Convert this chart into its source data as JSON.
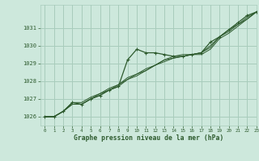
{
  "background_color": "#cde8dc",
  "grid_color": "#a8ccbc",
  "line_color": "#2d5a2d",
  "title": "Graphe pression niveau de la mer (hPa)",
  "xlim": [
    -0.5,
    23
  ],
  "ylim": [
    1025.5,
    1032.3
  ],
  "yticks": [
    1026,
    1027,
    1028,
    1029,
    1030,
    1031
  ],
  "xticks": [
    0,
    1,
    2,
    3,
    4,
    5,
    6,
    7,
    8,
    9,
    10,
    11,
    12,
    13,
    14,
    15,
    16,
    17,
    18,
    19,
    20,
    21,
    22,
    23
  ],
  "series": [
    [
      1026.0,
      1026.0,
      1026.3,
      1026.8,
      1026.7,
      1027.0,
      1027.2,
      1027.5,
      1027.7,
      1029.2,
      1029.8,
      1029.6,
      1029.6,
      1029.5,
      1029.4,
      1029.4,
      1029.5,
      1029.6,
      1030.2,
      1030.5,
      1030.9,
      1031.3,
      1031.7,
      1031.9
    ],
    [
      1026.0,
      1026.0,
      1026.3,
      1026.8,
      1026.8,
      1027.1,
      1027.3,
      1027.6,
      1027.8,
      1028.1,
      1028.3,
      1028.6,
      1028.9,
      1029.2,
      1029.4,
      1029.5,
      1029.5,
      1029.6,
      1030.0,
      1030.5,
      1030.9,
      1031.2,
      1031.6,
      1031.9
    ],
    [
      1026.0,
      1026.0,
      1026.3,
      1026.7,
      1026.7,
      1027.0,
      1027.3,
      1027.5,
      1027.8,
      1028.2,
      1028.4,
      1028.7,
      1028.9,
      1029.2,
      1029.3,
      1029.4,
      1029.5,
      1029.6,
      1029.9,
      1030.5,
      1030.8,
      1031.2,
      1031.5,
      1031.9
    ],
    [
      1026.0,
      1026.0,
      1026.3,
      1026.7,
      1026.7,
      1027.0,
      1027.2,
      1027.5,
      1027.7,
      1028.1,
      1028.4,
      1028.6,
      1028.9,
      1029.1,
      1029.3,
      1029.4,
      1029.5,
      1029.5,
      1029.8,
      1030.4,
      1030.7,
      1031.1,
      1031.5,
      1031.9
    ]
  ]
}
